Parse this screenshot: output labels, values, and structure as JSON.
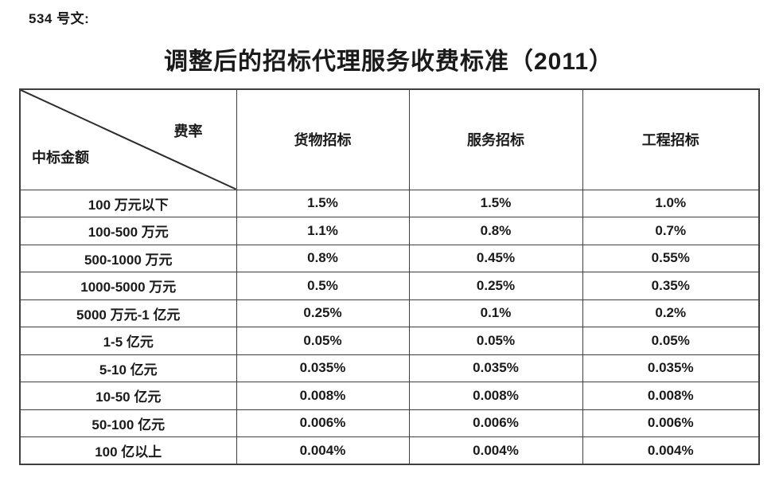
{
  "page": {
    "doc_label": "534 号文:",
    "title": "调整后的招标代理服务收费标准（2011）"
  },
  "table": {
    "corner": {
      "top_right": "费率",
      "bottom_left": "中标金额"
    },
    "columns": [
      "货物招标",
      "服务招标",
      "工程招标"
    ],
    "rows": [
      {
        "label": "100 万元以下",
        "values": [
          "1.5%",
          "1.5%",
          "1.0%"
        ]
      },
      {
        "label": "100-500 万元",
        "values": [
          "1.1%",
          "0.8%",
          "0.7%"
        ]
      },
      {
        "label": "500-1000 万元",
        "values": [
          "0.8%",
          "0.45%",
          "0.55%"
        ]
      },
      {
        "label": "1000-5000 万元",
        "values": [
          "0.5%",
          "0.25%",
          "0.35%"
        ]
      },
      {
        "label": "5000 万元-1 亿元",
        "values": [
          "0.25%",
          "0.1%",
          "0.2%"
        ]
      },
      {
        "label": "1-5 亿元",
        "values": [
          "0.05%",
          "0.05%",
          "0.05%"
        ]
      },
      {
        "label": "5-10 亿元",
        "values": [
          "0.035%",
          "0.035%",
          "0.035%"
        ]
      },
      {
        "label": "10-50 亿元",
        "values": [
          "0.008%",
          "0.008%",
          "0.008%"
        ]
      },
      {
        "label": "50-100 亿元",
        "values": [
          "0.006%",
          "0.006%",
          "0.006%"
        ]
      },
      {
        "label": "100 亿以上",
        "values": [
          "0.004%",
          "0.004%",
          "0.004%"
        ]
      }
    ]
  },
  "colors": {
    "text": "#1a1a1a",
    "border": "#3f3f3f",
    "background": "#ffffff"
  }
}
